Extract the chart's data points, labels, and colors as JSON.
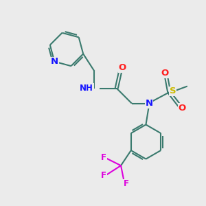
{
  "bg_color": "#ebebeb",
  "bond_color": "#3a7a6e",
  "bond_width": 1.5,
  "atom_colors": {
    "N": "#1414ff",
    "O": "#ff2020",
    "S": "#ccbb00",
    "F": "#dd00dd",
    "H_gray": "#888888"
  },
  "font_size": 8.5,
  "fig_size": [
    3.0,
    3.0
  ],
  "dpi": 100
}
